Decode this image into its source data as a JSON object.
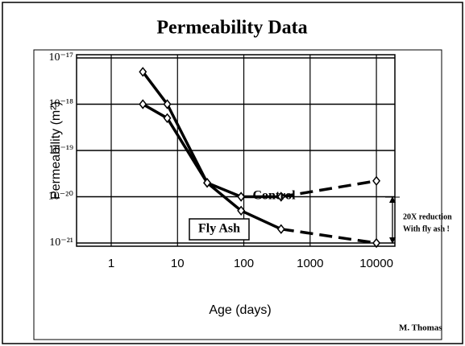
{
  "chart_data": {
    "type": "line",
    "title": "Permeability Data",
    "x_label": "Age (days)",
    "y_label": "Permeability (m²)",
    "x": [
      3,
      7,
      28,
      91,
      365,
      10000
    ],
    "series": [
      {
        "name": "Control",
        "color": "#000000",
        "values": [
          1e-18,
          5e-19,
          2e-20,
          1e-20,
          1e-20,
          2.2e-20
        ]
      },
      {
        "name": "Fly Ash",
        "color": "#000000",
        "values": [
          5e-18,
          1e-18,
          2e-20,
          5e-21,
          2e-21,
          1e-21
        ]
      }
    ],
    "dashed_last_segment": true,
    "x_log": true,
    "y_log": true,
    "xlim": [
      0.3,
      19000
    ],
    "ylim": [
      1e-21,
      1e-17
    ],
    "xticks": [
      1,
      10,
      100,
      1000,
      10000
    ],
    "yticks": [
      {
        "value": 1e-17,
        "label": "10⁻¹⁷"
      },
      {
        "value": 1e-18,
        "label": "10⁻¹⁸"
      },
      {
        "value": 1e-19,
        "label": "10⁻¹⁹"
      },
      {
        "value": 1e-20,
        "label": "10⁻²⁰"
      },
      {
        "value": 1e-21,
        "label": "10⁻²¹"
      }
    ],
    "grid": true,
    "annotations": [
      "20X reduction",
      "With fly ash !"
    ],
    "credit": "M. Thomas"
  }
}
